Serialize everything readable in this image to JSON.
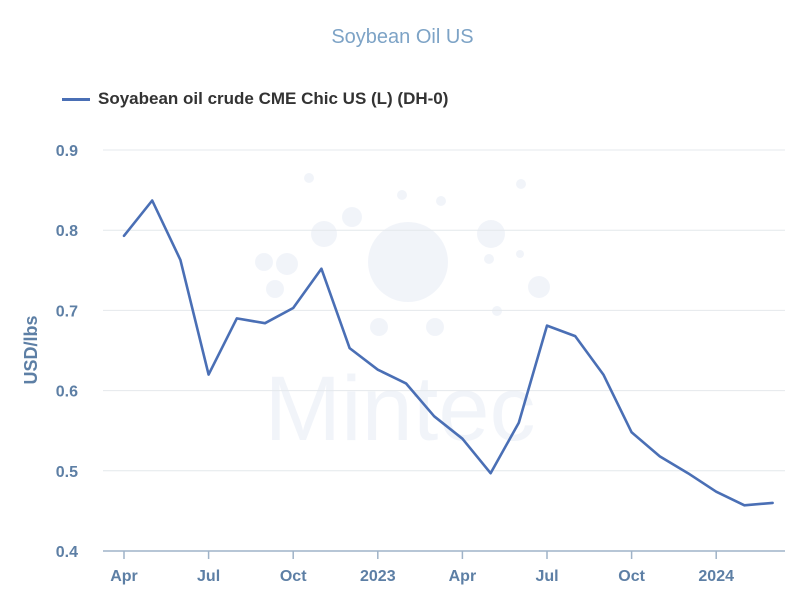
{
  "chart_data": {
    "type": "line",
    "title": "Soybean Oil US",
    "ylabel": "USD/lbs",
    "xlabel": "",
    "ylim": [
      0.4,
      0.9
    ],
    "yticks": [
      "0.4",
      "0.5",
      "0.6",
      "0.7",
      "0.8",
      "0.9"
    ],
    "xticks": [
      "Apr",
      "Jul",
      "Oct",
      "2023",
      "Apr",
      "Jul",
      "Oct",
      "2024"
    ],
    "grid": true,
    "legend_position": "top-left",
    "line_color": "#4a6fb5",
    "watermark": "Mintec",
    "x": [
      "2022-04",
      "2022-05",
      "2022-06",
      "2022-07",
      "2022-08",
      "2022-09",
      "2022-10",
      "2022-11",
      "2022-12",
      "2023-01",
      "2023-02",
      "2023-03",
      "2023-04",
      "2023-05",
      "2023-06",
      "2023-07",
      "2023-08",
      "2023-09",
      "2023-10",
      "2023-11",
      "2023-12",
      "2024-01",
      "2024-02",
      "2024-03"
    ],
    "series": [
      {
        "name": "Soyabean oil crude CME Chic US (L) (DH-0)",
        "values": [
          0.793,
          0.837,
          0.763,
          0.62,
          0.69,
          0.684,
          0.703,
          0.752,
          0.653,
          0.626,
          0.609,
          0.568,
          0.54,
          0.497,
          0.56,
          0.681,
          0.668,
          0.62,
          0.548,
          0.518,
          0.497,
          0.474,
          0.457,
          0.46
        ]
      }
    ]
  }
}
